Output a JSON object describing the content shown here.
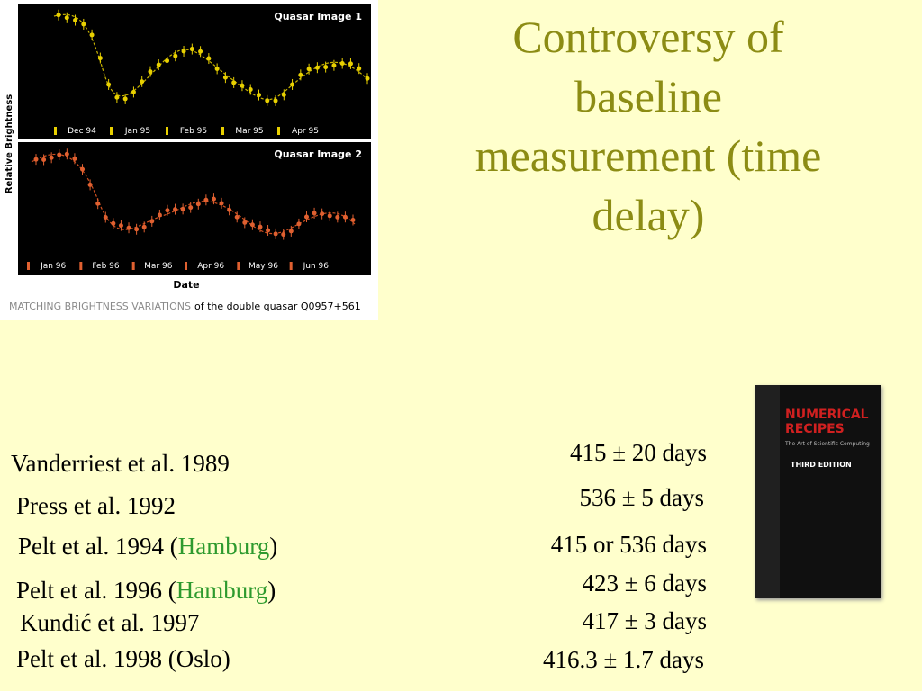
{
  "title": "Controversy of baseline measurement (time delay)",
  "figure": {
    "y_axis_label": "Relative Brightness",
    "x_axis_label": "Date",
    "panels": [
      {
        "label": "Quasar Image 1",
        "months": [
          "Dec 94",
          "Jan 95",
          "Feb 95",
          "Mar 95",
          "Apr 95"
        ]
      },
      {
        "label": "Quasar Image 2",
        "months": [
          "Jan 96",
          "Feb 96",
          "Mar 96",
          "Apr 96",
          "May 96",
          "Jun 96"
        ]
      }
    ],
    "caption": {
      "lead": "MATCHING BRIGHTNESS VARIATIONS",
      "rest": "of the double quasar Q0957+561"
    }
  },
  "references": [
    {
      "name": [
        "Vanderriest et al. 1989"
      ],
      "result": "415 ± 20 days"
    },
    {
      "name": [
        "Press et al. 1992"
      ],
      "result": "536 ± 5 days"
    },
    {
      "name": [
        "Pelt et al. 1994 (",
        "Hamburg",
        ")"
      ],
      "result": "415 or 536 days"
    },
    {
      "name": [
        "Pelt et al. 1996 (",
        "Hamburg",
        ")"
      ],
      "result": "423 ± 6 days"
    },
    {
      "name": [
        "Kundić et al. 1997"
      ],
      "result": "417 ± 3 days"
    },
    {
      "name": [
        "Pelt et al. 1998 (Oslo)"
      ],
      "result": "416.3 ± 1.7 days"
    }
  ],
  "book": {
    "title": "NUMERICAL RECIPES",
    "subtitle": "The Art of Scientific Computing",
    "edition": "THIRD EDITION"
  }
}
